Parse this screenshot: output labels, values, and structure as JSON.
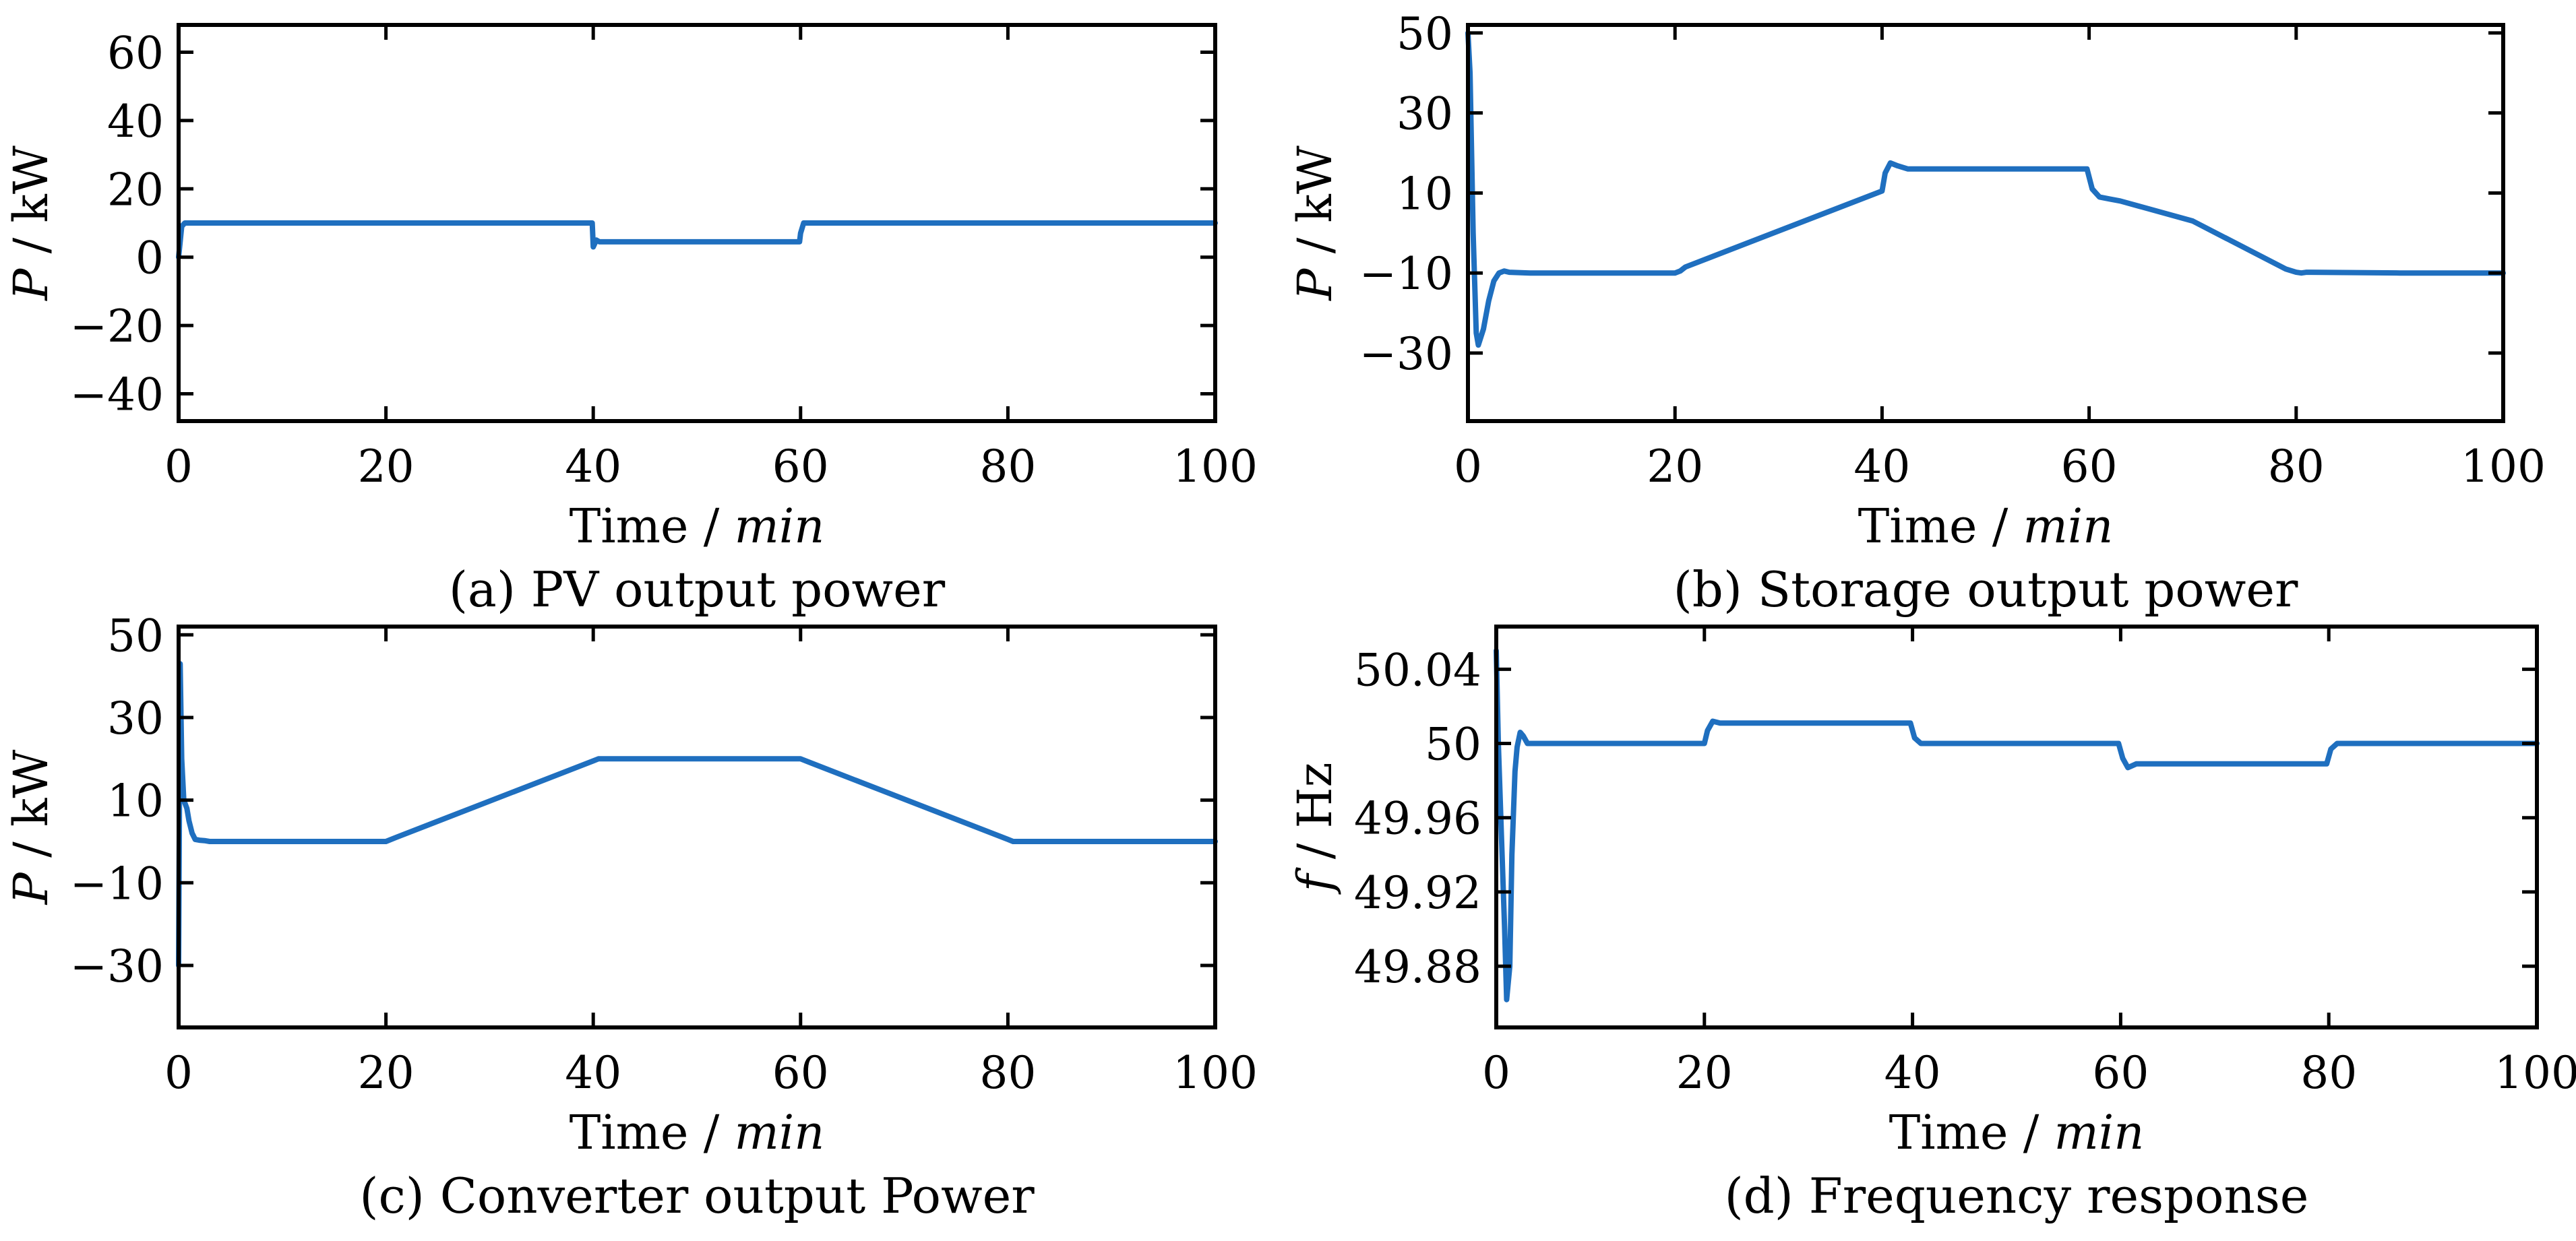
{
  "colors": {
    "series": "#1f6fbf",
    "axis": "#000000"
  },
  "chart_data": [
    {
      "id": "a",
      "type": "line",
      "caption": "(a) PV output power",
      "xlabel_main": "Time / ",
      "xlabel_unit": "min",
      "ylabel_var": "P",
      "ylabel_rest": " / kW",
      "xlim": [
        0,
        100
      ],
      "ylim": [
        -48,
        68
      ],
      "xticks": [
        0,
        20,
        40,
        60,
        80,
        100
      ],
      "xtick_labels": [
        "0",
        "20",
        "40",
        "60",
        "80",
        "100"
      ],
      "yticks": [
        60,
        40,
        20,
        0,
        -20,
        -40
      ],
      "ytick_labels": [
        "60",
        "40",
        "20",
        "0",
        "−20",
        "−40"
      ],
      "series": [
        {
          "name": "PV output power",
          "x": [
            0,
            0.3,
            0.6,
            39.9,
            40.0,
            40.3,
            40.6,
            59.9,
            60.0,
            60.3,
            100
          ],
          "y": [
            0,
            9,
            10,
            10,
            3,
            5,
            4.5,
            4.5,
            7,
            10,
            10
          ]
        }
      ]
    },
    {
      "id": "b",
      "type": "line",
      "caption": "(b) Storage output power",
      "xlabel_main": "Time / ",
      "xlabel_unit": "min",
      "ylabel_var": "P",
      "ylabel_rest": " / kW",
      "xlim": [
        0,
        100
      ],
      "ylim": [
        -47,
        52
      ],
      "xticks": [
        0,
        20,
        40,
        60,
        80,
        100
      ],
      "xtick_labels": [
        "0",
        "20",
        "40",
        "60",
        "80",
        "100"
      ],
      "yticks": [
        50,
        30,
        10,
        -10,
        -30
      ],
      "ytick_labels": [
        "50",
        "30",
        "10",
        "−10",
        "−30"
      ],
      "series": [
        {
          "name": "Storage output power",
          "x": [
            0,
            0.2,
            0.5,
            0.8,
            1.0,
            1.5,
            2.0,
            2.5,
            3.0,
            3.5,
            4.0,
            6.0,
            10,
            20,
            20.5,
            21,
            40,
            40.3,
            40.8,
            41.5,
            42.5,
            50,
            59.8,
            60.3,
            61,
            62,
            63,
            70,
            79,
            80,
            80.5,
            81,
            90,
            100
          ],
          "y": [
            50,
            40,
            0,
            -25,
            -28,
            -24,
            -17,
            -12,
            -10,
            -9.5,
            -9.8,
            -10,
            -10,
            -10,
            -9.5,
            -8.5,
            10.5,
            15,
            17.5,
            16.8,
            16,
            16,
            16,
            11,
            9,
            8.5,
            8,
            3,
            -9,
            -9.8,
            -10,
            -9.8,
            -10,
            -10
          ]
        }
      ]
    },
    {
      "id": "c",
      "type": "line",
      "caption": "(c) Converter output Power",
      "xlabel_main": "Time / ",
      "xlabel_unit": "min",
      "ylabel_var": "P",
      "ylabel_rest": " / kW",
      "xlim": [
        0,
        100
      ],
      "ylim": [
        -45,
        52
      ],
      "xticks": [
        0,
        20,
        40,
        60,
        80,
        100
      ],
      "xtick_labels": [
        "0",
        "20",
        "40",
        "60",
        "80",
        "100"
      ],
      "yticks": [
        50,
        30,
        10,
        -10,
        -30
      ],
      "ytick_labels": [
        "50",
        "30",
        "10",
        "−10",
        "−30"
      ],
      "series": [
        {
          "name": "Converter output power",
          "x": [
            0,
            0.15,
            0.3,
            0.5,
            0.8,
            1.0,
            1.3,
            1.6,
            2.0,
            2.5,
            3.0,
            5,
            10,
            20,
            21,
            40,
            40.5,
            60,
            61,
            80,
            80.5,
            100
          ],
          "y": [
            -30,
            43,
            20,
            10,
            8,
            5,
            2,
            0.5,
            0.3,
            0.2,
            0,
            0,
            0,
            0,
            1,
            19.5,
            20,
            20,
            19,
            0.5,
            0,
            0
          ]
        }
      ]
    },
    {
      "id": "d",
      "type": "line",
      "caption": "(d) Frequency response",
      "xlabel_main": "Time / ",
      "xlabel_unit": "min",
      "ylabel_var": "f",
      "ylabel_rest": " / Hz",
      "xlim": [
        0,
        100
      ],
      "ylim": [
        49.847,
        50.063
      ],
      "xticks": [
        0,
        20,
        40,
        60,
        80,
        100
      ],
      "xtick_labels": [
        "0",
        "20",
        "40",
        "60",
        "80",
        "100"
      ],
      "yticks": [
        50.04,
        50.0,
        49.96,
        49.92,
        49.88
      ],
      "ytick_labels": [
        "50.04",
        "50",
        "49.96",
        "49.92",
        "49.88"
      ],
      "series": [
        {
          "name": "Frequency response",
          "x": [
            0,
            0.2,
            0.5,
            0.8,
            1.0,
            1.3,
            1.5,
            1.8,
            2.0,
            2.3,
            2.6,
            3.0,
            3.4,
            4.0,
            10,
            20,
            20.3,
            20.8,
            21.5,
            30,
            39.8,
            40.2,
            40.8,
            50,
            59.8,
            60.2,
            60.7,
            61.5,
            70,
            79.8,
            80.2,
            80.8,
            90,
            100
          ],
          "y": [
            50.05,
            50.0,
            49.95,
            49.9,
            49.862,
            49.88,
            49.94,
            49.985,
            49.998,
            50.006,
            50.004,
            50.0,
            50.0,
            50.0,
            50.0,
            50.0,
            50.007,
            50.012,
            50.011,
            50.011,
            50.011,
            50.003,
            50.0,
            50.0,
            50.0,
            49.992,
            49.987,
            49.989,
            49.989,
            49.989,
            49.997,
            50.0,
            50.0,
            50.0
          ]
        }
      ]
    }
  ]
}
